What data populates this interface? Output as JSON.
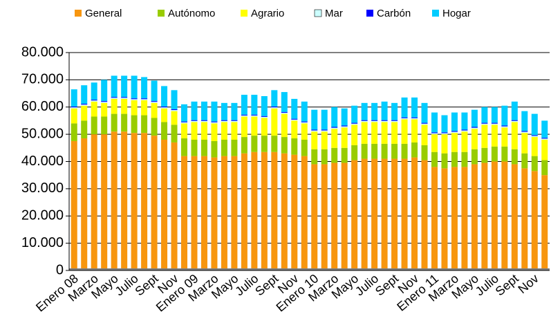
{
  "chart_data": {
    "type": "bar",
    "stacked": true,
    "categories": [
      "Enero 08",
      null,
      "Marzo",
      null,
      "Mayo",
      null,
      "Julio",
      null,
      "Sept",
      null,
      "Nov",
      null,
      "Enero 09",
      null,
      "Marzo",
      null,
      "Mayo",
      null,
      "Julio",
      null,
      "Sept",
      null,
      "Nov",
      null,
      "Enero 10",
      null,
      "Marzo",
      null,
      "Mayo",
      null,
      "Julio",
      null,
      "Sept",
      null,
      "Nov",
      null,
      "Enero 11",
      null,
      "Marzo",
      null,
      "Mayo",
      null,
      "Julio",
      null,
      "Sept",
      null,
      "Nov",
      null
    ],
    "series": [
      {
        "name": "General",
        "color": "#f7960f",
        "values": [
          47500,
          48500,
          50000,
          50000,
          51000,
          51000,
          50500,
          50500,
          49500,
          48000,
          47000,
          42000,
          42000,
          42000,
          41500,
          42000,
          42000,
          43000,
          43500,
          43500,
          43500,
          43000,
          42500,
          42000,
          39000,
          39000,
          39500,
          39500,
          40500,
          41000,
          41000,
          41000,
          41000,
          41000,
          41500,
          40500,
          38000,
          37500,
          38000,
          38000,
          39000,
          39500,
          40000,
          40000,
          39000,
          37500,
          36500,
          35000
        ]
      },
      {
        "name": "Autónomo",
        "color": "#99cc00",
        "values": [
          6500,
          6500,
          6500,
          6500,
          6500,
          6500,
          6500,
          6500,
          6500,
          6500,
          6500,
          6500,
          6000,
          6000,
          6000,
          6000,
          6000,
          6000,
          6000,
          6000,
          6000,
          6000,
          6000,
          6000,
          5500,
          5500,
          5500,
          5500,
          5500,
          5500,
          5500,
          5500,
          5500,
          5500,
          5500,
          5500,
          5500,
          5500,
          5500,
          5500,
          5500,
          5500,
          5500,
          5500,
          5500,
          5500,
          5500,
          5500
        ]
      },
      {
        "name": "Agrario",
        "color": "#ffff00",
        "values": [
          5500,
          5500,
          5500,
          5000,
          5500,
          5500,
          5500,
          5500,
          5500,
          5000,
          5000,
          5500,
          6500,
          6500,
          6500,
          6500,
          6500,
          7500,
          7000,
          6500,
          10000,
          8500,
          6500,
          6000,
          6500,
          6500,
          7000,
          7500,
          7500,
          8000,
          8000,
          8000,
          8000,
          9000,
          8500,
          7500,
          6500,
          7000,
          7000,
          7500,
          7500,
          8500,
          8000,
          7000,
          10000,
          7500,
          7000,
          7500
        ]
      },
      {
        "name": "Mar",
        "color": "#ccffff",
        "values": [
          400,
          400,
          400,
          400,
          400,
          400,
          400,
          400,
          400,
          400,
          400,
          400,
          400,
          400,
          400,
          400,
          400,
          400,
          400,
          400,
          400,
          400,
          400,
          400,
          400,
          400,
          400,
          400,
          400,
          400,
          400,
          400,
          400,
          400,
          400,
          400,
          400,
          400,
          400,
          400,
          400,
          400,
          400,
          400,
          400,
          400,
          400,
          400
        ]
      },
      {
        "name": "Carbón",
        "color": "#0000ff",
        "values": [
          300,
          300,
          300,
          300,
          300,
          300,
          300,
          300,
          300,
          300,
          300,
          300,
          300,
          300,
          300,
          300,
          300,
          300,
          300,
          300,
          300,
          300,
          300,
          300,
          300,
          300,
          300,
          300,
          300,
          300,
          300,
          300,
          300,
          300,
          300,
          300,
          300,
          300,
          300,
          300,
          300,
          300,
          300,
          300,
          300,
          300,
          300,
          300
        ]
      },
      {
        "name": "Hogar",
        "color": "#00ccff",
        "values": [
          6300,
          6800,
          6300,
          7800,
          7800,
          7800,
          8300,
          7800,
          7500,
          7500,
          7000,
          6300,
          6800,
          6800,
          7300,
          6300,
          6300,
          7300,
          7300,
          7300,
          6000,
          7300,
          7300,
          7300,
          7300,
          7300,
          7300,
          6300,
          6300,
          6300,
          6300,
          6800,
          6300,
          7300,
          7300,
          7300,
          7300,
          6300,
          6800,
          6300,
          6300,
          5800,
          5800,
          7300,
          6800,
          7300,
          7800,
          6300
        ]
      }
    ],
    "ylim": [
      0,
      80000
    ],
    "yticks": [
      {
        "value": 0,
        "label": "0"
      },
      {
        "value": 10000,
        "label": "10.000"
      },
      {
        "value": 20000,
        "label": "20.000"
      },
      {
        "value": 30000,
        "label": "30.000"
      },
      {
        "value": 40000,
        "label": "40.000"
      },
      {
        "value": 50000,
        "label": "50.000"
      },
      {
        "value": 60000,
        "label": "60.000"
      },
      {
        "value": 70000,
        "label": "70.000"
      },
      {
        "value": 80000,
        "label": "80.000"
      }
    ],
    "grid": true,
    "legend": "top"
  }
}
